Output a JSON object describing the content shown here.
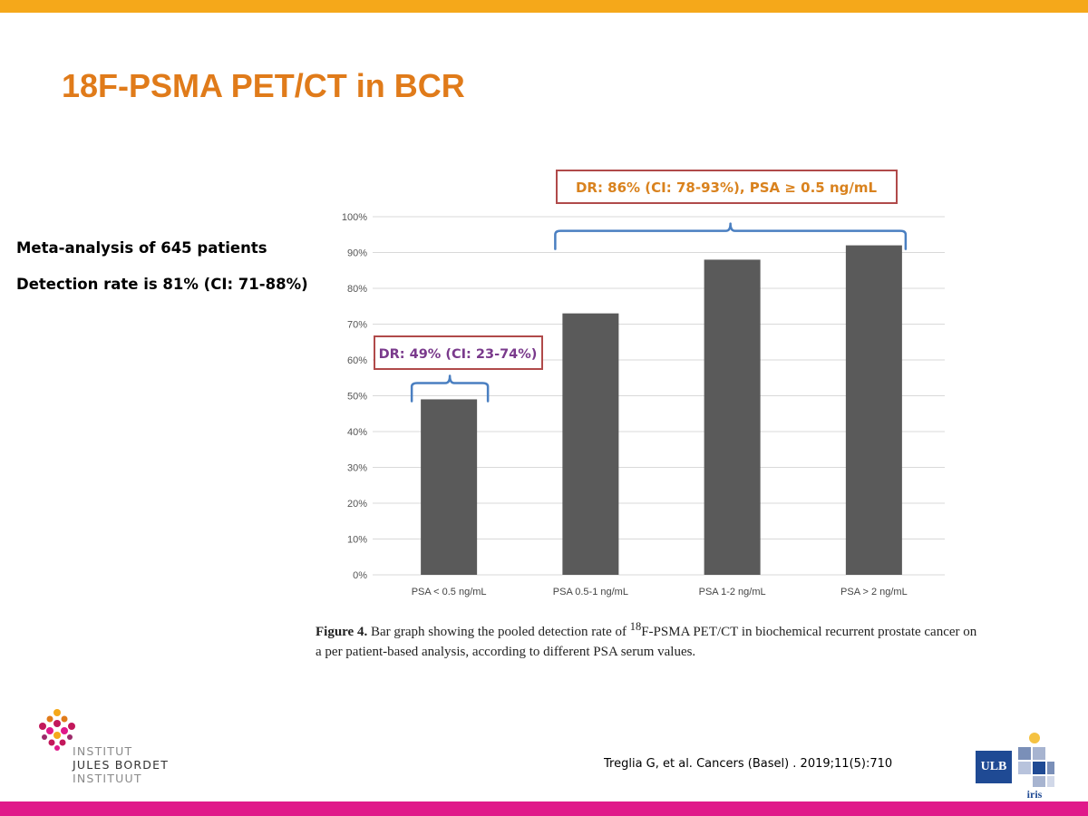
{
  "colors": {
    "top_bar": "#f5a81a",
    "bottom_bar": "#e0198a",
    "title": "#e07b1a",
    "bar_fill": "#5a5a5a",
    "bracket": "#4a7fc1",
    "box_border": "#b04a4a",
    "annotation_orange": "#d9821e",
    "annotation_purple": "#7a3a8c",
    "ulb_blue": "#1f4a94"
  },
  "slide": {
    "title": "18F-PSMA PET/CT in BCR",
    "summary": {
      "line1": "Meta-analysis of 645 patients",
      "line2": "Detection rate is 81% (CI: 71-88%)"
    }
  },
  "chart_data": {
    "type": "bar",
    "categories": [
      "PSA < 0.5 ng/mL",
      "PSA 0.5-1 ng/mL",
      "PSA 1-2 ng/mL",
      "PSA > 2 ng/mL"
    ],
    "values": [
      49,
      73,
      88,
      92
    ],
    "ylim": [
      0,
      100
    ],
    "yticks": [
      0,
      10,
      20,
      30,
      40,
      50,
      60,
      70,
      80,
      90,
      100
    ],
    "ytick_labels": [
      "0%",
      "10%",
      "20%",
      "30%",
      "40%",
      "50%",
      "60%",
      "70%",
      "80%",
      "90%",
      "100%"
    ],
    "grid": true,
    "xlabel": "",
    "ylabel": "",
    "annotations": [
      {
        "text": "DR: 86% (CI: 78-93%), PSA ≥ 0.5 ng/mL",
        "spans_categories": [
          1,
          3
        ],
        "color_key": "annotation_orange"
      },
      {
        "text": "DR: 49% (CI: 23-74%)",
        "spans_categories": [
          0,
          0
        ],
        "color_key": "annotation_purple"
      }
    ]
  },
  "caption": {
    "label": "Figure 4.",
    "text_before_sup": "Bar graph showing the pooled detection rate of",
    "superscript": "18",
    "text_after_sup": "F-PSMA PET/CT in biochemical recurrent prostate cancer on a per patient-based analysis, according to different PSA serum values."
  },
  "citation": "Treglia G, et al. Cancers (Basel) . 2019;11(5):710",
  "logos": {
    "bordet_line1": "INSTITUT",
    "bordet_line2": "JULES BORDET",
    "bordet_line3": "INSTITUUT",
    "ulb": "ULB",
    "iris": "iris"
  }
}
